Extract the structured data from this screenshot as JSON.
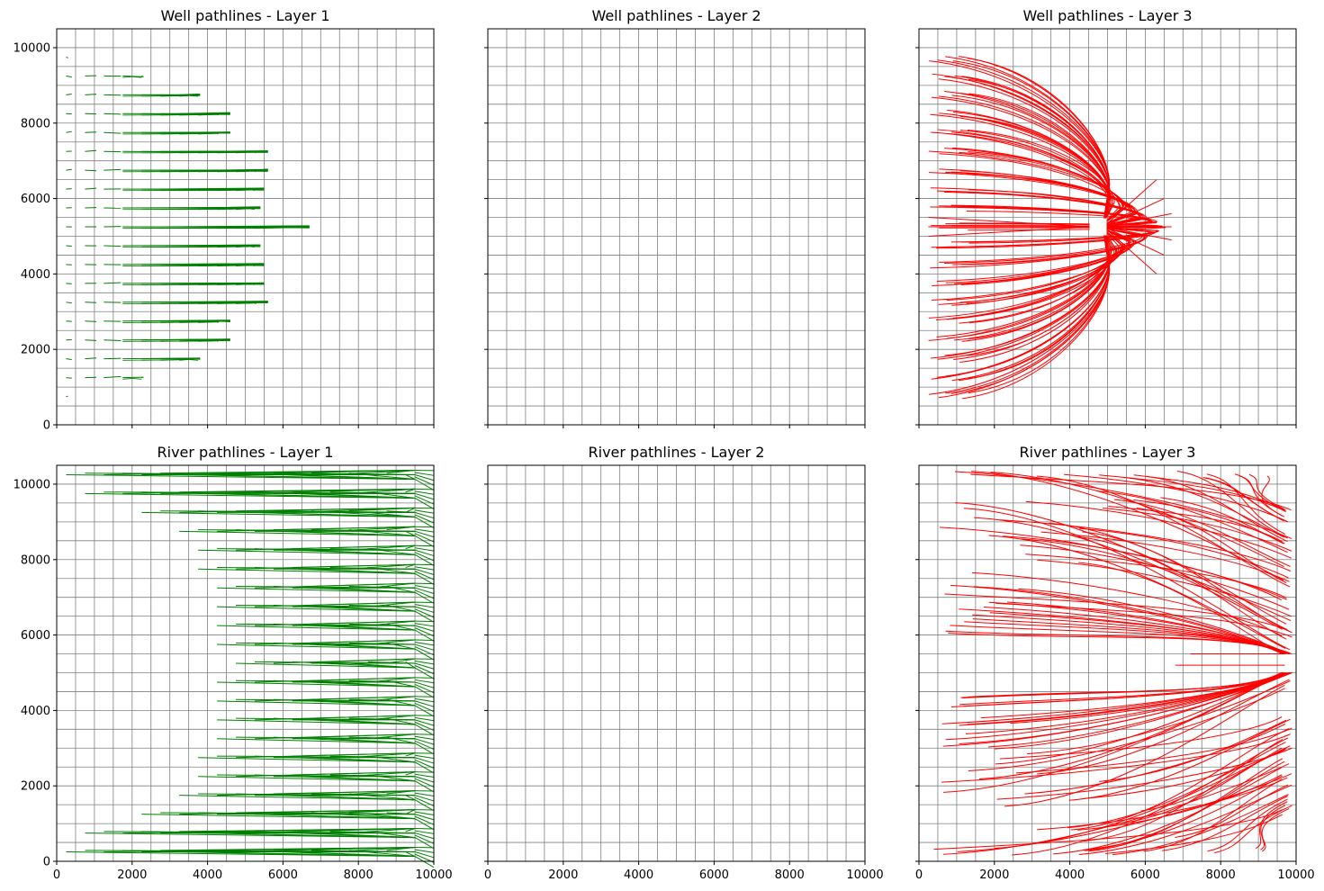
{
  "figure": {
    "background": "#ffffff",
    "grid_color": "#808080",
    "well_cell": {
      "x": [
        4500,
        5000
      ],
      "y": [
        5000,
        5500
      ]
    }
  },
  "chart_data": [
    {
      "type": "line",
      "title": "Well pathlines - Layer 1",
      "xlabel": "",
      "ylabel": "",
      "xlim": [
        0,
        10000
      ],
      "ylim": [
        0,
        10500
      ],
      "xticks": [
        "",
        "",
        "",
        "",
        "",
        ""
      ],
      "yticks": [
        "0",
        "2000",
        "4000",
        "6000",
        "8000",
        "10000"
      ],
      "grid": true,
      "grid_spacing": 500,
      "line_color": "#008000",
      "render": "well_fan",
      "fan_rows": [
        {
          "y": 750,
          "max_x": 300
        },
        {
          "y": 1250,
          "max_x": 2300
        },
        {
          "y": 1750,
          "max_x": 3800
        },
        {
          "y": 2250,
          "max_x": 4600
        },
        {
          "y": 2750,
          "max_x": 4600
        },
        {
          "y": 3250,
          "max_x": 5600
        },
        {
          "y": 3750,
          "max_x": 5500
        },
        {
          "y": 4250,
          "max_x": 5500
        },
        {
          "y": 4750,
          "max_x": 5400
        },
        {
          "y": 5250,
          "max_x": 6700
        },
        {
          "y": 5750,
          "max_x": 5400
        },
        {
          "y": 6250,
          "max_x": 5500
        },
        {
          "y": 6750,
          "max_x": 5600
        },
        {
          "y": 7250,
          "max_x": 5600
        },
        {
          "y": 7750,
          "max_x": 4600
        },
        {
          "y": 8250,
          "max_x": 4600
        },
        {
          "y": 8750,
          "max_x": 3800
        },
        {
          "y": 9250,
          "max_x": 2300
        },
        {
          "y": 9750,
          "max_x": 300
        }
      ],
      "fan_starts": [
        250,
        750,
        1250,
        1750,
        2250,
        2750,
        3250,
        3750,
        4250,
        4750,
        5250
      ]
    },
    {
      "type": "line",
      "title": "Well pathlines - Layer 2",
      "xlabel": "",
      "ylabel": "",
      "xlim": [
        0,
        10000
      ],
      "ylim": [
        0,
        10500
      ],
      "xticks": [
        "",
        "",
        "",
        "",
        "",
        ""
      ],
      "yticks": [
        "",
        "",
        "",
        "",
        "",
        ""
      ],
      "grid": true,
      "grid_spacing": 500,
      "render": "empty"
    },
    {
      "type": "line",
      "title": "Well pathlines - Layer 3",
      "xlabel": "",
      "ylabel": "",
      "xlim": [
        0,
        10000
      ],
      "ylim": [
        0,
        10500
      ],
      "xticks": [
        "",
        "",
        "",
        "",
        "",
        ""
      ],
      "yticks": [
        "",
        "",
        "",
        "",
        "",
        ""
      ],
      "grid": true,
      "grid_spacing": 500,
      "line_color": "#ff0000",
      "render": "well_converge",
      "target": {
        "x": 4750,
        "y": 5250
      },
      "apex_offsets": [
        {
          "y": 5250,
          "x": 6700
        },
        {
          "y": 5600,
          "x": 6700
        },
        {
          "y": 4900,
          "x": 6700
        },
        {
          "y": 6000,
          "x": 6500
        },
        {
          "y": 4500,
          "x": 6500
        },
        {
          "y": 6500,
          "x": 6300
        },
        {
          "y": 4000,
          "x": 6300
        }
      ],
      "source_ys": [
        750,
        1250,
        1750,
        2250,
        2750,
        3250,
        3750,
        4250,
        4750,
        5250,
        5750,
        6250,
        6750,
        7250,
        7750,
        8250,
        8750,
        9250,
        9750
      ]
    },
    {
      "type": "line",
      "title": "River pathlines - Layer 1",
      "xlabel": "",
      "ylabel": "",
      "xlim": [
        0,
        10000
      ],
      "ylim": [
        0,
        10500
      ],
      "xticks": [
        "0",
        "2000",
        "4000",
        "6000",
        "8000",
        "10000"
      ],
      "yticks": [
        "0",
        "2000",
        "4000",
        "6000",
        "8000",
        "10000"
      ],
      "grid": true,
      "grid_spacing": 500,
      "line_color": "#008000",
      "render": "river_fan",
      "fan_rows": [
        {
          "y": 250,
          "min_x": 250
        },
        {
          "y": 750,
          "min_x": 750
        },
        {
          "y": 1250,
          "min_x": 2250
        },
        {
          "y": 1750,
          "min_x": 3250
        },
        {
          "y": 2250,
          "min_x": 3750
        },
        {
          "y": 2750,
          "min_x": 3750
        },
        {
          "y": 3250,
          "min_x": 4250
        },
        {
          "y": 3750,
          "min_x": 4250
        },
        {
          "y": 4250,
          "min_x": 4250
        },
        {
          "y": 4750,
          "min_x": 4250
        },
        {
          "y": 5250,
          "min_x": 4750
        },
        {
          "y": 5750,
          "min_x": 4250
        },
        {
          "y": 6250,
          "min_x": 4250
        },
        {
          "y": 6750,
          "min_x": 4250
        },
        {
          "y": 7250,
          "min_x": 4250
        },
        {
          "y": 7750,
          "min_x": 3750
        },
        {
          "y": 8250,
          "min_x": 3750
        },
        {
          "y": 8750,
          "min_x": 3250
        },
        {
          "y": 9250,
          "min_x": 2250
        },
        {
          "y": 9750,
          "min_x": 750
        },
        {
          "y": 10250,
          "min_x": 250
        }
      ],
      "river_x": 10000
    },
    {
      "type": "line",
      "title": "River pathlines - Layer 2",
      "xlabel": "",
      "ylabel": "",
      "xlim": [
        0,
        10000
      ],
      "ylim": [
        0,
        10500
      ],
      "xticks": [
        "0",
        "2000",
        "4000",
        "6000",
        "8000",
        "10000"
      ],
      "yticks": [
        "",
        "",
        "",
        "",
        "",
        ""
      ],
      "grid": true,
      "grid_spacing": 500,
      "render": "empty"
    },
    {
      "type": "line",
      "title": "River pathlines - Layer 3",
      "xlabel": "",
      "ylabel": "",
      "xlim": [
        0,
        10000
      ],
      "ylim": [
        0,
        10500
      ],
      "xticks": [
        "0",
        "2000",
        "4000",
        "6000",
        "8000",
        "10000"
      ],
      "yticks": [
        "",
        "",
        "",
        "",
        "",
        ""
      ],
      "grid": true,
      "grid_spacing": 500,
      "line_color": "#ff0000",
      "render": "river_converge",
      "river_x": 10000,
      "gap_y": [
        5100,
        5400
      ]
    }
  ]
}
